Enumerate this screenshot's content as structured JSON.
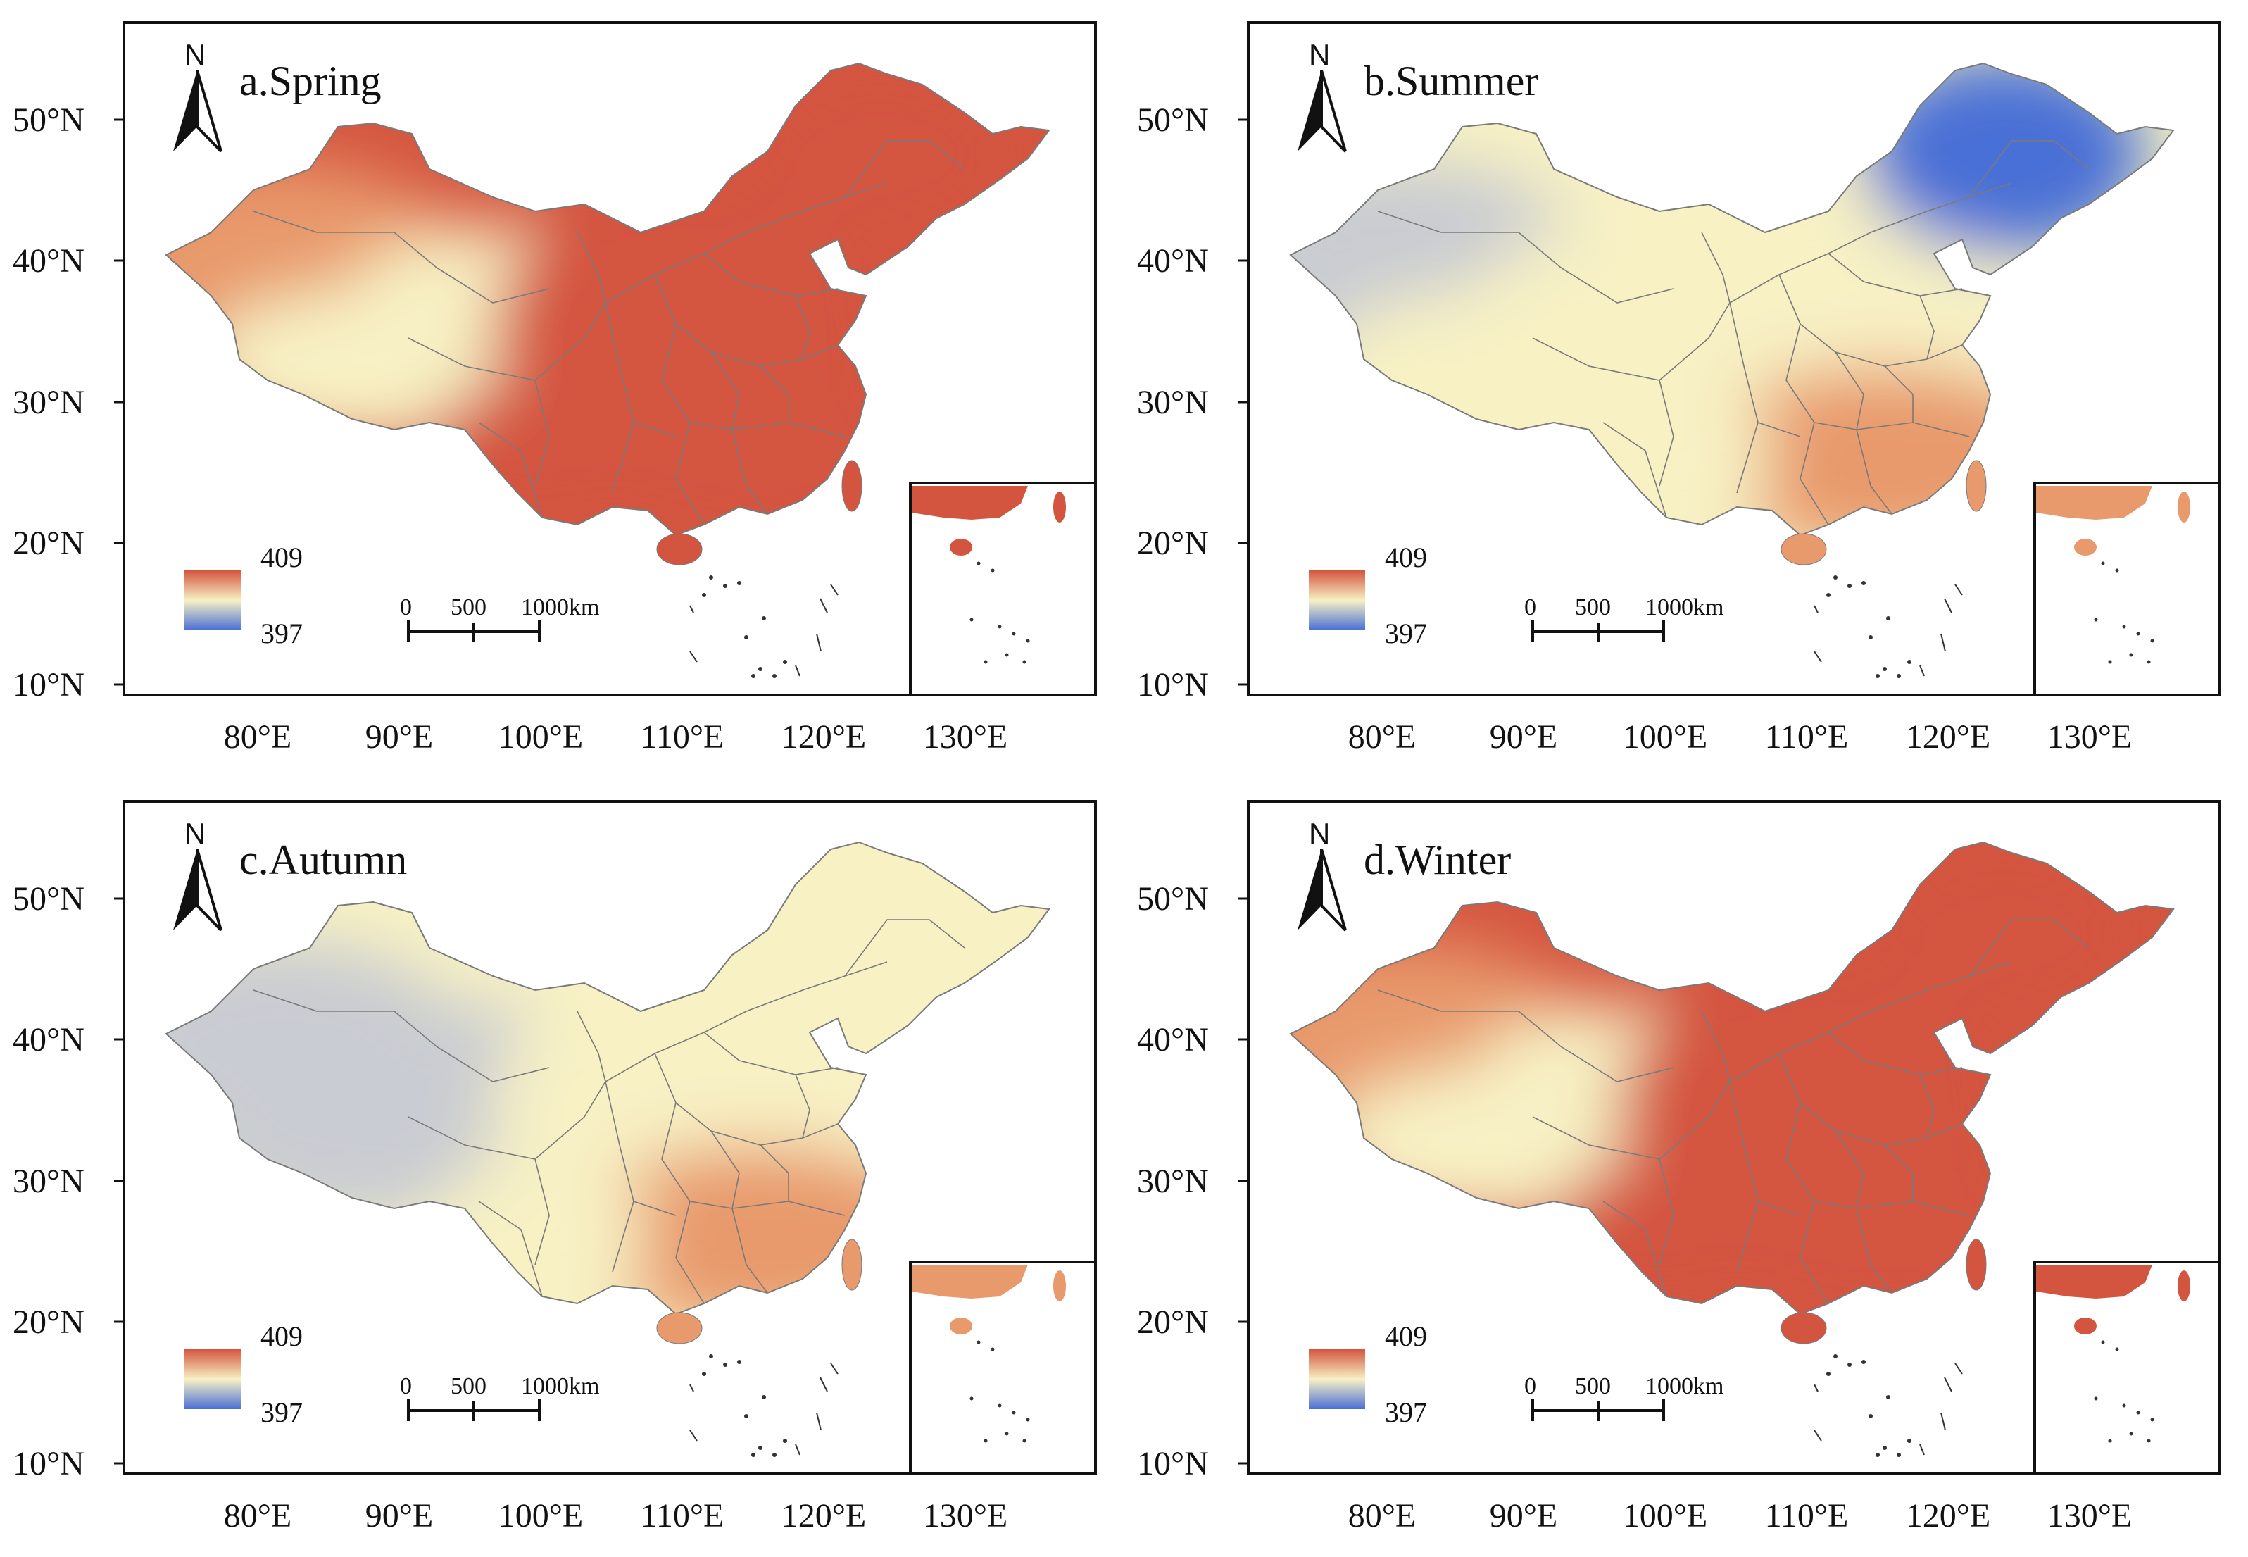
{
  "figure": {
    "unit_legend": {
      "max": "409",
      "min": "397"
    },
    "colors": {
      "high": "#d4553f",
      "mid_high": "#e89a6c",
      "mid": "#f7f1c4",
      "mid_low": "#c9ccd2",
      "low": "#4a6fd6",
      "border": "#7a7a7a"
    },
    "scale_bar": {
      "labels": [
        "0",
        "500",
        "1000km"
      ]
    },
    "north_arrow": "N",
    "lat_labels": [
      "10°N",
      "20°N",
      "30°N",
      "40°N",
      "50°N"
    ],
    "lon_labels": [
      "80°E",
      "90°E",
      "100°E",
      "110°E",
      "120°E",
      "130°E"
    ]
  },
  "panels": [
    {
      "id": "a",
      "title": "a.Spring",
      "dominant": "high",
      "west": "mid_high",
      "tibet": "mid",
      "northeast": "high",
      "south": "high"
    },
    {
      "id": "b",
      "title": "b.Summer",
      "dominant": "mid",
      "west": "mid_low",
      "tibet": "mid",
      "northeast": "low",
      "south": "mid_high"
    },
    {
      "id": "c",
      "title": "c.Autumn",
      "dominant": "mid",
      "west": "mid_low",
      "tibet": "mid_low",
      "northeast": "mid",
      "south": "mid_high"
    },
    {
      "id": "d",
      "title": "d.Winter",
      "dominant": "high",
      "west": "mid_high",
      "tibet": "mid",
      "northeast": "high",
      "south": "high"
    }
  ]
}
